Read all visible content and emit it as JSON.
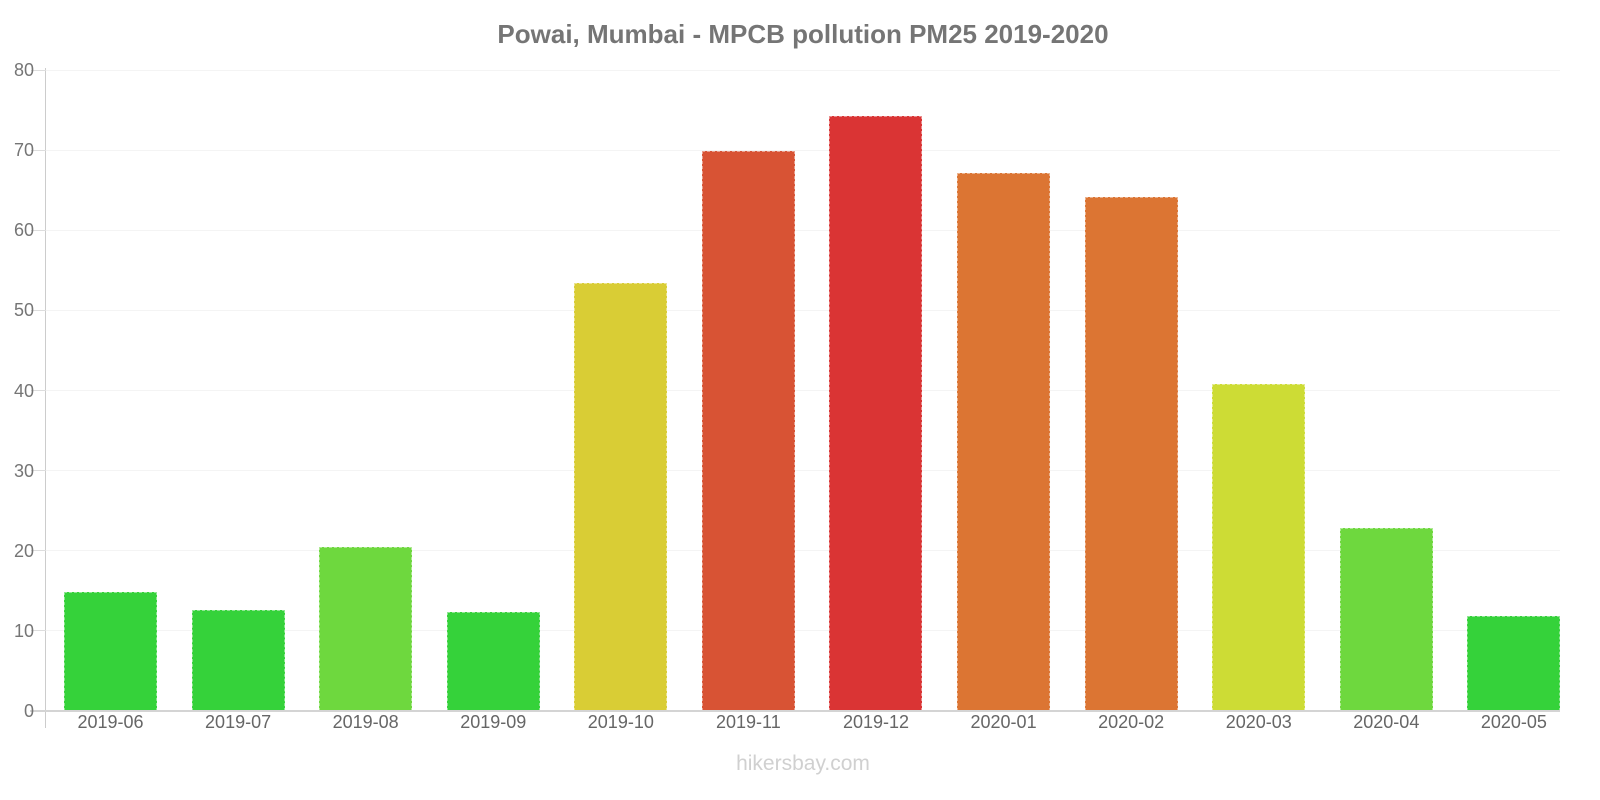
{
  "title": "Powai, Mumbai - MPCB pollution PM25 2019-2020",
  "footer": "hikersbay.com",
  "chart_data": {
    "type": "bar",
    "title": "Powai, Mumbai - MPCB pollution PM25 2019-2020",
    "xlabel": "",
    "ylabel": "",
    "ylim": [
      0,
      80
    ],
    "yticks": [
      0,
      10,
      20,
      30,
      40,
      50,
      60,
      70,
      80
    ],
    "grid": "faint-horizontal",
    "legend": "none",
    "categories": [
      "2019-06",
      "2019-07",
      "2019-08",
      "2019-09",
      "2019-10",
      "2019-11",
      "2019-12",
      "2020-01",
      "2020-02",
      "2020-03",
      "2020-04",
      "2020-05"
    ],
    "values": [
      14.8,
      12.6,
      20.5,
      12.3,
      53.4,
      69.9,
      74.2,
      67.2,
      64.2,
      40.8,
      22.8,
      11.9
    ],
    "colors": [
      "#35d23a",
      "#35d23a",
      "#6ed83e",
      "#35d23a",
      "#d9cd35",
      "#d85334",
      "#da3434",
      "#dc7533",
      "#dc7533",
      "#cddc35",
      "#6ed83e",
      "#35d23a"
    ],
    "color_legend_semantics": {
      "#35d23a": "green-low",
      "#6ed83e": "light-green",
      "#cddc35": "yellow-green",
      "#d9cd35": "yellow",
      "#dc7533": "orange",
      "#d85334": "orange-red",
      "#da3434": "red-high"
    }
  }
}
